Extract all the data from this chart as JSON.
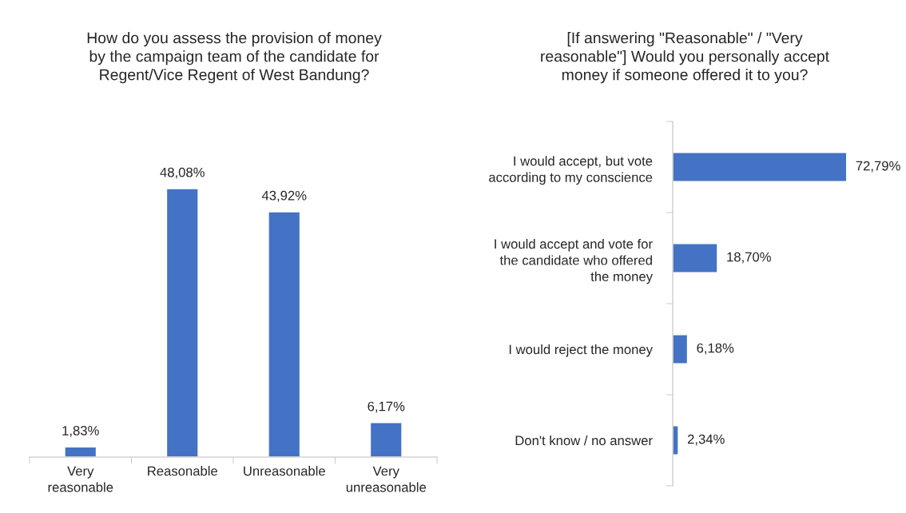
{
  "chart_data": [
    {
      "type": "bar",
      "title": "How do you assess the provision of money\nby the campaign team of the candidate for\nRegent/Vice Regent of West Bandung?",
      "categories": [
        "Very\nreasonable",
        "Reasonable",
        "Unreasonable",
        "Very\nunreasonable"
      ],
      "values": [
        1.83,
        48.08,
        43.92,
        6.17
      ],
      "value_labels": [
        "1,83%",
        "48,08%",
        "43,92%",
        "6,17%"
      ],
      "color": "#4472c4",
      "grid": false,
      "legend": false
    },
    {
      "type": "bar",
      "orientation": "horizontal",
      "title": "[If answering \"Reasonable\" / \"Very\nreasonable\"] Would you personally accept\nmoney if someone offered it to you?",
      "categories": [
        "I would accept, but vote\naccording to my conscience",
        "I would accept and vote for\nthe candidate who offered\nthe money",
        "I would reject the money",
        "Don't know / no answer"
      ],
      "values": [
        72.79,
        18.7,
        6.18,
        2.34
      ],
      "value_labels": [
        "72,79%",
        "18,70%",
        "6,18%",
        "2,34%"
      ],
      "color": "#4472c4",
      "grid": false,
      "legend": false
    }
  ]
}
